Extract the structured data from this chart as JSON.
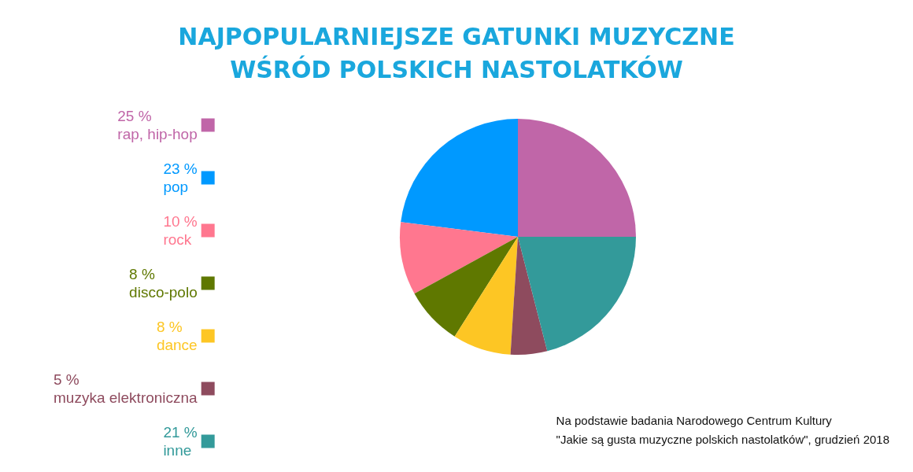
{
  "chart_data": {
    "type": "pie",
    "title": "NAJPOPULARNIEJSZE GATUNKI MUZYCZNE\nWŚRÓD POLSKICH NASTOLATKÓW",
    "categories": [
      "rap, hip-hop",
      "pop",
      "rock",
      "disco-polo",
      "dance",
      "muzyka elektroniczna",
      "inne"
    ],
    "values": [
      25,
      23,
      10,
      8,
      8,
      5,
      21
    ],
    "colors": [
      "#c066a8",
      "#0099ff",
      "#ff778f",
      "#5f7800",
      "#fdc624",
      "#8e4b5e",
      "#339a9a"
    ],
    "value_labels": [
      "25 %",
      "23 %",
      "10 %",
      "8 %",
      "8 %",
      "5 %",
      "21 %"
    ],
    "legend": "left",
    "annotations": [
      "Na podstawie badania Narodowego Centrum Kultury\n\"Jakie są gusta muzyczne polskich nastolatków\", grudzień 2018"
    ]
  }
}
